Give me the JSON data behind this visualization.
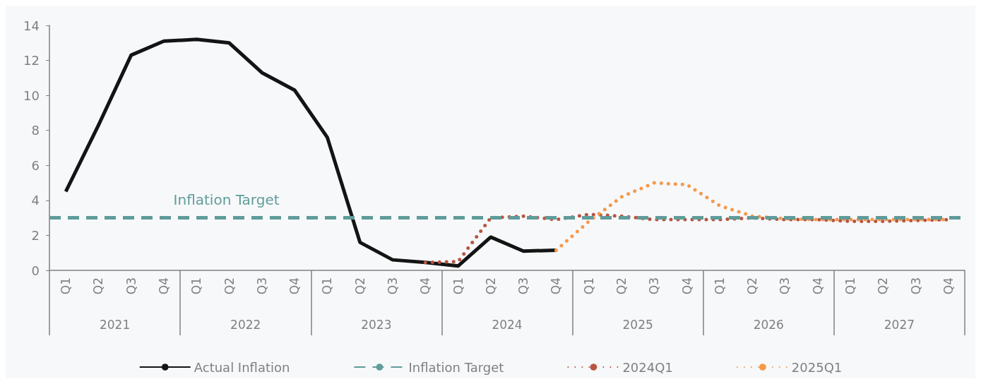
{
  "chart_data": {
    "type": "line",
    "categories": [
      "Q1",
      "Q2",
      "Q3",
      "Q4",
      "Q1",
      "Q2",
      "Q3",
      "Q4",
      "Q1",
      "Q2",
      "Q3",
      "Q4",
      "Q1",
      "Q2",
      "Q3",
      "Q4",
      "Q1",
      "Q2",
      "Q3",
      "Q4",
      "Q1",
      "Q2",
      "Q3",
      "Q4",
      "Q1",
      "Q2",
      "Q3",
      "Q4"
    ],
    "annotations": [
      "2021",
      "2022",
      "2023",
      "2024",
      "2025",
      "2026",
      "2027"
    ],
    "series": [
      {
        "name": "Actual Inflation",
        "color": "#141414",
        "line_style": "solid",
        "values": [
          4.5,
          8.3,
          12.3,
          13.1,
          13.2,
          13.0,
          11.3,
          10.3,
          7.6,
          1.6,
          0.6,
          0.45,
          0.25,
          1.9,
          1.1,
          1.15,
          null,
          null,
          null,
          null,
          null,
          null,
          null,
          null,
          null,
          null,
          null,
          null
        ]
      },
      {
        "name": "2024Q1",
        "color": "#b85540",
        "line_style": "dotted",
        "values": [
          null,
          null,
          null,
          null,
          null,
          null,
          null,
          null,
          null,
          null,
          null,
          0.45,
          0.5,
          3.0,
          3.1,
          2.9,
          3.2,
          3.1,
          2.9,
          2.9,
          2.9,
          3.0,
          2.9,
          2.9,
          2.8,
          2.8,
          2.85,
          2.9
        ]
      },
      {
        "name": "2025Q1",
        "color": "#f5994a",
        "line_style": "dotted",
        "values": [
          null,
          null,
          null,
          null,
          null,
          null,
          null,
          null,
          null,
          null,
          null,
          null,
          null,
          null,
          null,
          1.15,
          2.8,
          4.2,
          5.0,
          4.9,
          3.7,
          3.1,
          2.95,
          2.9,
          2.9,
          2.9,
          2.9,
          2.9
        ]
      }
    ],
    "ref_lines": [
      {
        "axis": "y",
        "value": 3,
        "label": "Inflation Target",
        "color": "#5f9c9a",
        "line_style": "dashed"
      }
    ],
    "ylim": [
      0,
      14
    ],
    "yticks": [
      0,
      2,
      4,
      6,
      8,
      10,
      12,
      14
    ],
    "grid": false,
    "legend": "bottom",
    "marker": "none"
  }
}
